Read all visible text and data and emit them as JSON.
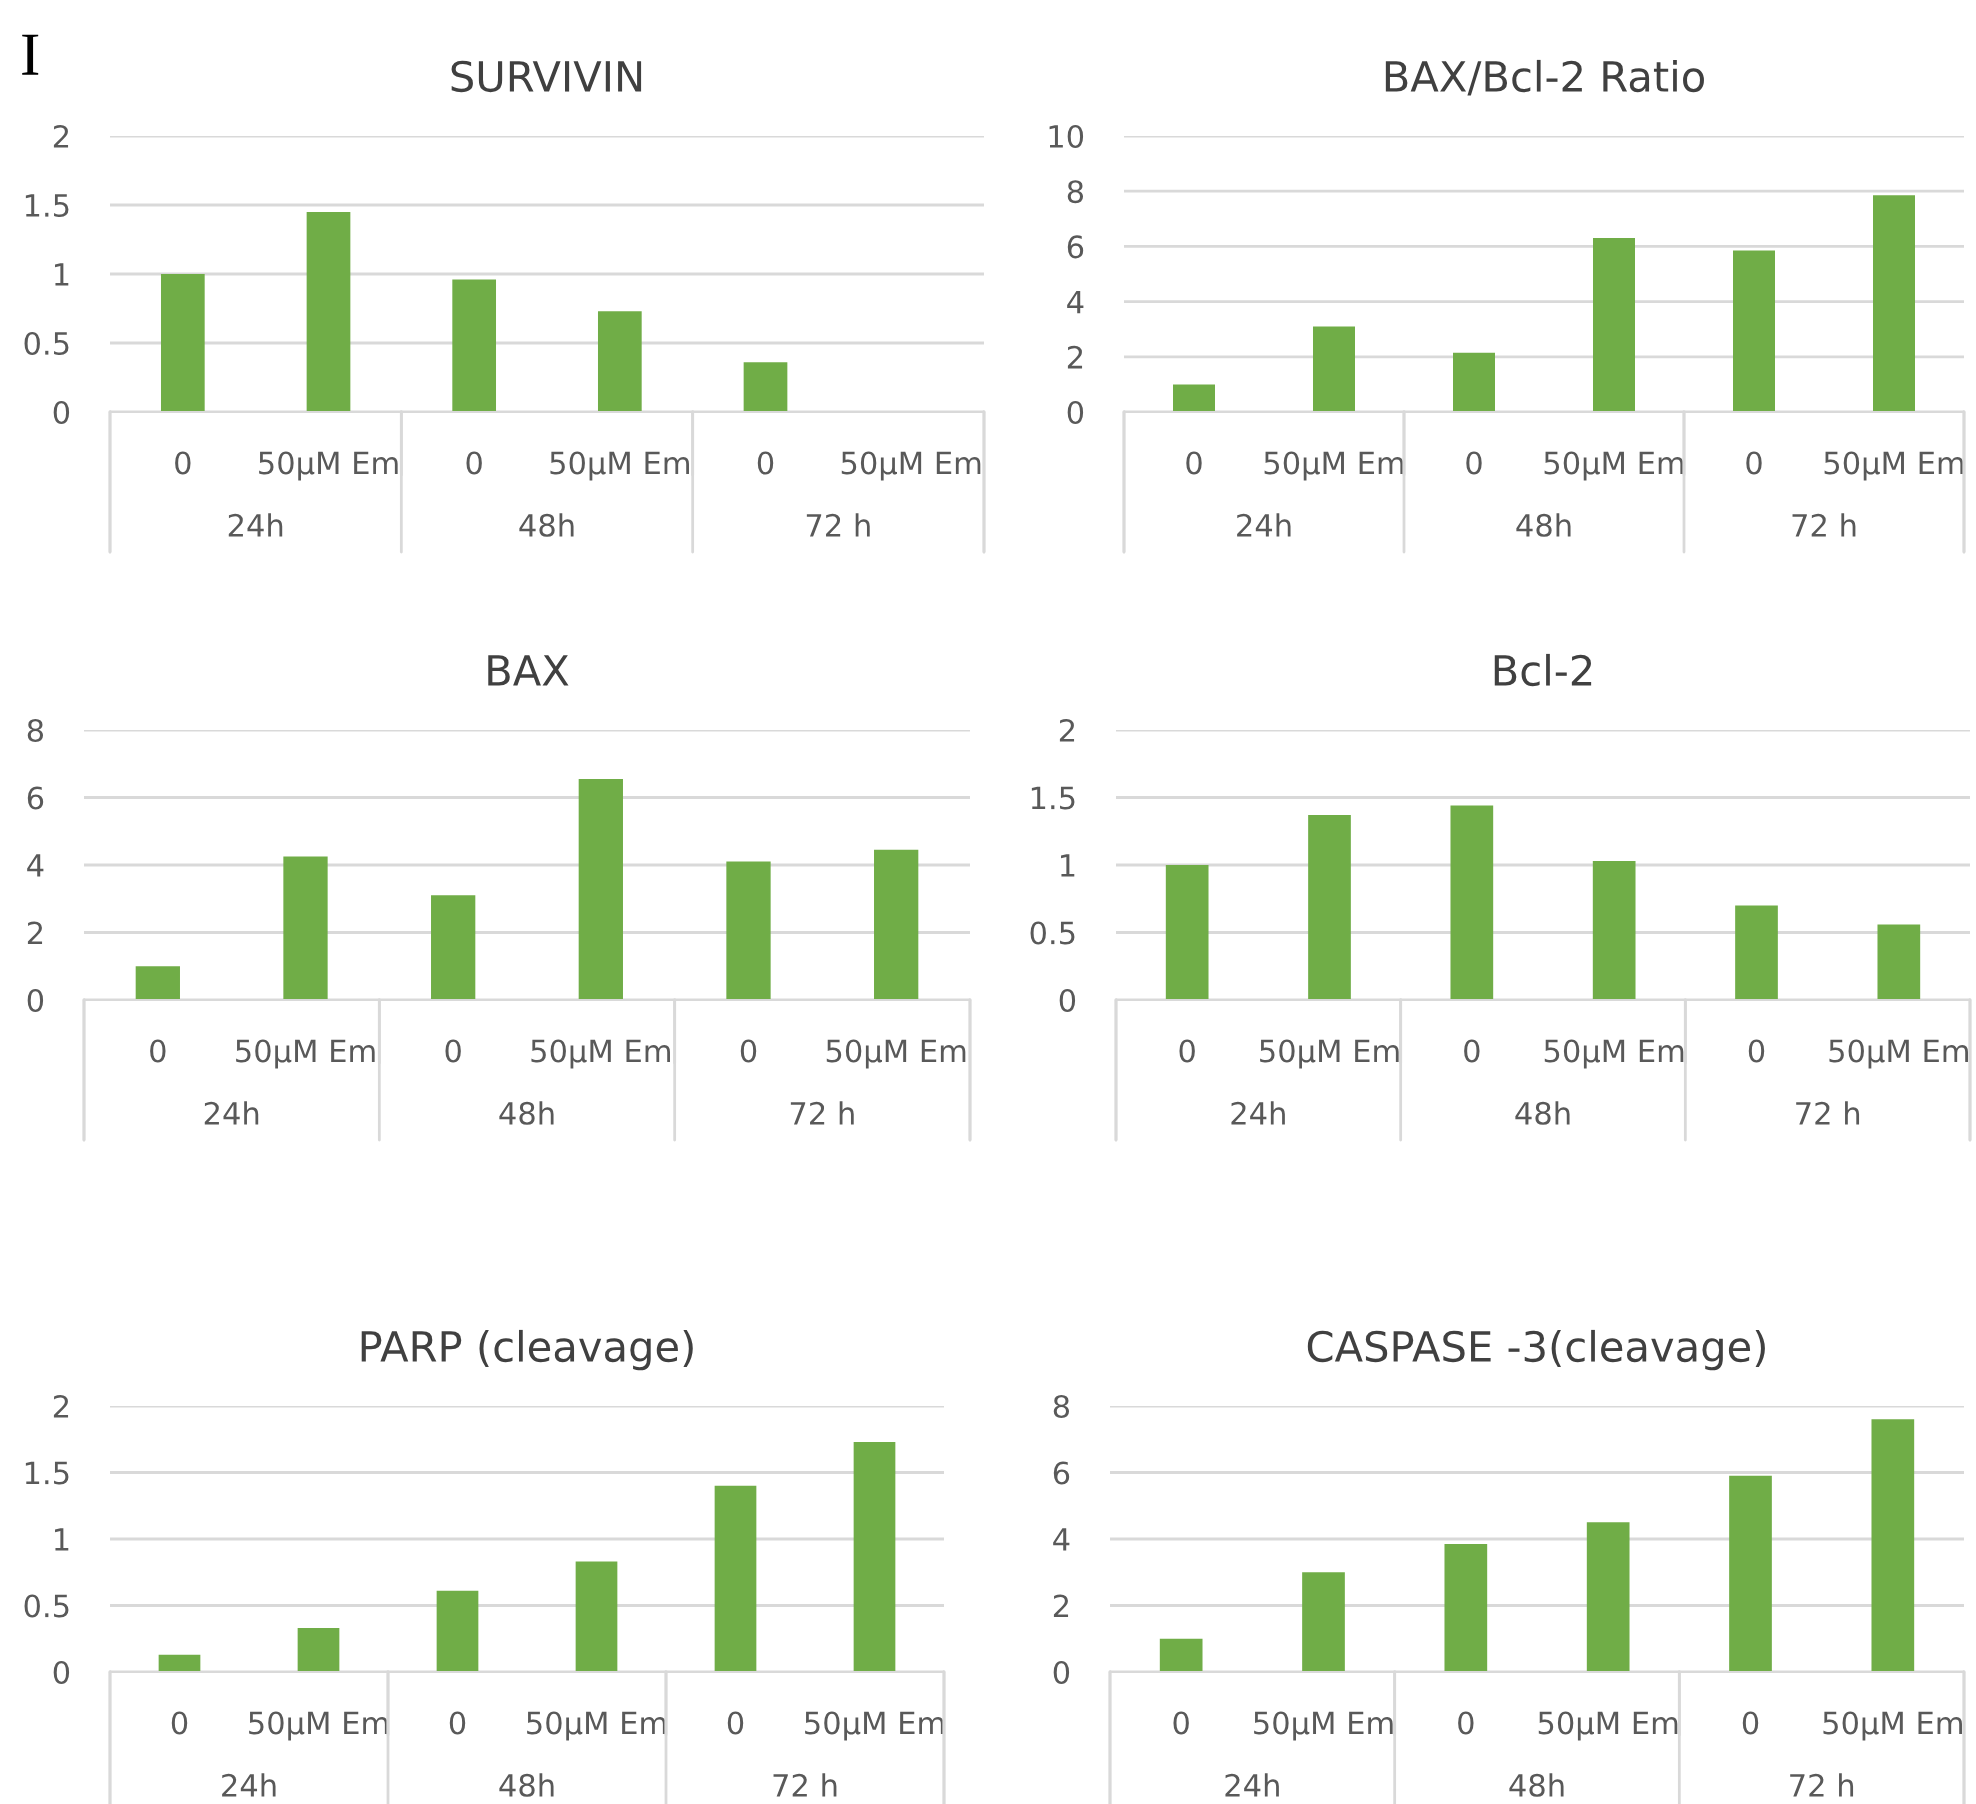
{
  "chart_data": [
    {
      "type": "bar",
      "title": "SURVIVIN",
      "categories": [
        "0",
        "50µM Em",
        "0",
        "50µM Em",
        "0",
        "50µM Em"
      ],
      "values": [
        1.0,
        1.45,
        0.96,
        0.73,
        0.36,
        null
      ],
      "color": "#70ad47",
      "ylim": [
        0,
        2
      ],
      "yticks": [
        0,
        0.5,
        1,
        1.5,
        2
      ],
      "grid": "y",
      "annotations": [
        "I",
        "24h",
        "48h",
        "72 h"
      ]
    },
    {
      "type": "bar",
      "title": "BAX/Bcl-2 Ratio",
      "categories": [
        "0",
        "50µM Em",
        "0",
        "50µM Em",
        "0",
        "50µM Em"
      ],
      "values": [
        1.0,
        3.1,
        2.15,
        6.3,
        5.85,
        7.85
      ],
      "color": "#70ad47",
      "ylim": [
        0,
        10
      ],
      "yticks": [
        0,
        2,
        4,
        6,
        8,
        10
      ],
      "grid": "y",
      "annotations": [
        "24h",
        "48h",
        "72 h"
      ]
    },
    {
      "type": "bar",
      "title": "BAX",
      "categories": [
        "0",
        "50µM Em",
        "0",
        "50µM Em",
        "0",
        "50µM Em"
      ],
      "values": [
        1.0,
        4.25,
        3.1,
        6.55,
        4.1,
        4.45
      ],
      "color": "#70ad47",
      "ylim": [
        0,
        8
      ],
      "yticks": [
        0,
        2,
        4,
        6,
        8
      ],
      "grid": "y",
      "annotations": [
        "24h",
        "48h",
        "72 h"
      ]
    },
    {
      "type": "bar",
      "title": "Bcl-2",
      "categories": [
        "0",
        "50µM Em",
        "0",
        "50µM Em",
        "0",
        "50µM Em"
      ],
      "values": [
        1.0,
        1.37,
        1.44,
        1.03,
        0.7,
        0.56
      ],
      "color": "#70ad47",
      "ylim": [
        0,
        2
      ],
      "yticks": [
        0,
        0.5,
        1,
        1.5,
        2
      ],
      "grid": "y",
      "annotations": [
        "24h",
        "48h",
        "72 h"
      ]
    },
    {
      "type": "bar",
      "title": "PARP (cleavage)",
      "categories": [
        "0",
        "50µM Em",
        "0",
        "50µM Em",
        "0",
        "50µM Em"
      ],
      "values": [
        0.13,
        0.33,
        0.61,
        0.83,
        1.4,
        1.73
      ],
      "color": "#70ad47",
      "ylim": [
        0,
        2
      ],
      "yticks": [
        0,
        0.5,
        1,
        1.5,
        2
      ],
      "grid": "y",
      "annotations": [
        "24h",
        "48h",
        "72 h"
      ]
    },
    {
      "type": "bar",
      "title": "CASPASE -3(cleavage)",
      "categories": [
        "0",
        "50µM Em",
        "0",
        "50µM Em",
        "0",
        "50µM Em"
      ],
      "values": [
        1.0,
        3.0,
        3.85,
        4.5,
        5.9,
        7.6
      ],
      "color": "#70ad47",
      "ylim": [
        0,
        8
      ],
      "yticks": [
        0,
        2,
        4,
        6,
        8
      ],
      "grid": "y",
      "annotations": [
        "24h",
        "48h",
        "72 h"
      ]
    }
  ]
}
